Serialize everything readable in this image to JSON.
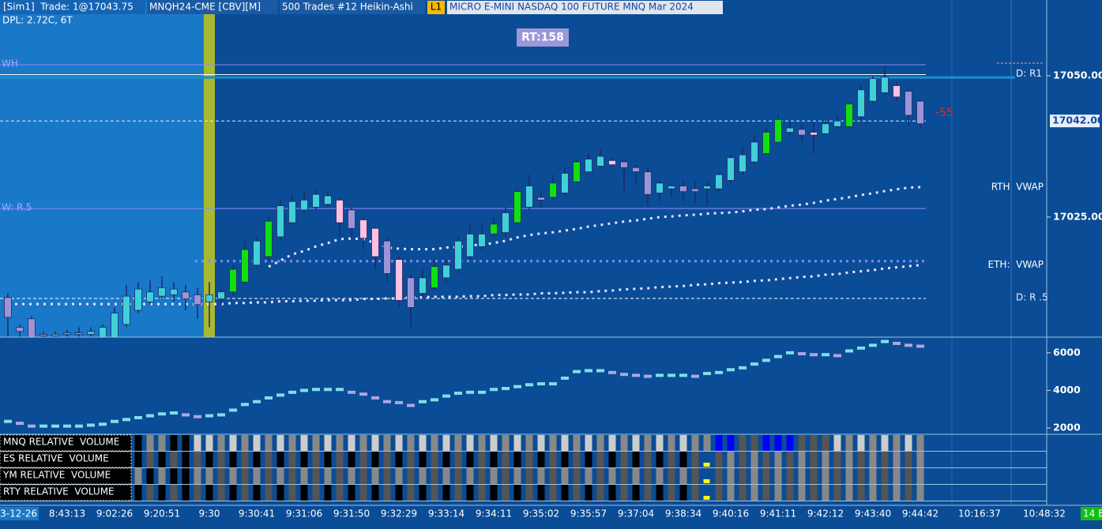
{
  "header": {
    "trade": "[Sim1]  Trade: 1@17043.75",
    "instrument": "MNQH24-CME [CBV][M]",
    "bar_type": "500 Trades #12 Heikin-Ashi",
    "level": "L1",
    "description": "MICRO E-MINI NASDAQ 100 FUTURE MNQ Mar 2024",
    "dpl": "DPL: 2.72C, 6T",
    "rt": "RT:158"
  },
  "chart_data": [
    {
      "type": "candlestick",
      "open": [
        17010.75,
        17005.5,
        17007,
        17004.25,
        17004,
        17004.25,
        17004.25,
        17004.25,
        17003.75,
        17003.75,
        17006,
        17008.5,
        17010,
        17011,
        17011.25,
        17011.75,
        17011.25,
        17010,
        17010.5,
        17011.75,
        17013.5,
        17016.5,
        17018,
        17021.5,
        17024,
        17026.25,
        17026.75,
        17027.25,
        17028,
        17026.25,
        17024.5,
        17023,
        17020.75,
        17017.5,
        17014.25,
        17011.5,
        17012.5,
        17014.25,
        17015.75,
        17018,
        17019.75,
        17022,
        17022.25,
        17024,
        17026.75,
        17028.5,
        17028.5,
        17029.25,
        17031.25,
        17033,
        17034,
        17035,
        17034.75,
        17033.75,
        17033,
        17029.25,
        17030,
        17030.5,
        17030,
        17030,
        17030,
        17031.5,
        17033,
        17034.75,
        17036.25,
        17038.25,
        17040,
        17040.5,
        17040,
        17039.75,
        17041,
        17041,
        17042.75,
        17045.5,
        17047,
        17048.25,
        17047.25,
        17045.5
      ],
      "high": [
        17011.5,
        17006,
        17007.5,
        17004.75,
        17004.75,
        17005,
        17005.5,
        17005.5,
        17006,
        17009,
        17013,
        17013.5,
        17013.75,
        17014.5,
        17013.5,
        17013,
        17012.5,
        17013.5,
        17012.25,
        17016.5,
        17020.75,
        17021.5,
        17025,
        17028,
        17029,
        17029.5,
        17030,
        17029.5,
        17028.5,
        17026.75,
        17025,
        17023.25,
        17021.25,
        17018,
        17015,
        17015.75,
        17017.5,
        17017.5,
        17021.5,
        17023.75,
        17023.75,
        17025,
        17026.75,
        17030,
        17032.5,
        17029.5,
        17032.5,
        17033.75,
        17035.25,
        17036.25,
        17037,
        17035.5,
        17035.25,
        17034.25,
        17033.75,
        17031.5,
        17031,
        17031.5,
        17031.25,
        17031.25,
        17033,
        17036,
        17037.5,
        17039.5,
        17040.75,
        17043,
        17042,
        17041.5,
        17041.75,
        17042.25,
        17043,
        17045.5,
        17048.25,
        17050,
        17051.75,
        17049,
        17047.5,
        17045.75
      ],
      "low": [
        17003.75,
        17003.75,
        17003.75,
        17003.75,
        17003.75,
        17003.75,
        17003.75,
        17003.75,
        17003.75,
        17003.75,
        17005.5,
        17008,
        17009.5,
        17010.5,
        17010,
        17008.5,
        17007,
        17005.5,
        17009.5,
        17011,
        17013,
        17016,
        17017.5,
        17021,
        17023.75,
        17025.75,
        17026.25,
        17026.75,
        17021.5,
        17021.25,
        17019.25,
        17015.75,
        17013.5,
        17009,
        17005.5,
        17010.5,
        17012,
        17013.5,
        17015,
        17017.5,
        17019.25,
        17021.5,
        17021.5,
        17023.75,
        17026.25,
        17026.75,
        17028,
        17028.75,
        17031,
        17032.5,
        17033.75,
        17034,
        17029.5,
        17031,
        17027,
        17027.75,
        17028.5,
        17027.75,
        17027.5,
        17027,
        17029.5,
        17031,
        17032.5,
        17034.25,
        17036,
        17038,
        17039.5,
        17038.25,
        17036.25,
        17039.5,
        17040.75,
        17040.75,
        17042.25,
        17045,
        17046.5,
        17045.5,
        17041,
        17040.75
      ],
      "close": [
        17007.25,
        17004.75,
        17003.75,
        17004,
        17004.25,
        17004.5,
        17004.5,
        17004.75,
        17005.5,
        17008,
        17011,
        17012.25,
        17011.75,
        17012.5,
        17012.25,
        17010.5,
        17009.5,
        17011.25,
        17011.75,
        17015.75,
        17019.25,
        17020.75,
        17024.25,
        17027,
        17027.75,
        17028,
        17029,
        17028.75,
        17024,
        17023,
        17021.25,
        17018,
        17015,
        17010.25,
        17009,
        17014.25,
        17016.25,
        17016.5,
        17020.75,
        17022,
        17022,
        17023.75,
        17025.75,
        17029.5,
        17030.5,
        17028,
        17031,
        17032.75,
        17034.75,
        17035.25,
        17035.75,
        17034.25,
        17033.75,
        17033,
        17029,
        17031,
        17030.5,
        17029.5,
        17029.5,
        17030.5,
        17032.5,
        17035.5,
        17036,
        17038.25,
        17040,
        17042.25,
        17040.75,
        17039.5,
        17039.5,
        17041.5,
        17042,
        17045,
        17047.5,
        17049.5,
        17049.75,
        17046.25,
        17043,
        17041.5
      ],
      "colors": [
        "#9c94d8",
        "#9c94d8",
        "#9c94d8",
        "#9c94d8",
        "#40d0d8",
        "#40d0d8",
        "#40d0d8",
        "#40d0d8",
        "#40d0d8",
        "#40d0d8",
        "#40d0d8",
        "#40d0d8",
        "#40d0d8",
        "#40d0d8",
        "#40d0d8",
        "#9c94d8",
        "#9c94d8",
        "#40d0d8",
        "#40d0d8",
        "#10e010",
        "#10e010",
        "#40d0d8",
        "#10e010",
        "#40d0d8",
        "#40d0d8",
        "#40d0d8",
        "#40d0d8",
        "#40d0d8",
        "#ffc0e0",
        "#9c94d8",
        "#ffc0e0",
        "#ffc0e0",
        "#9c94d8",
        "#ffc0e0",
        "#9c94d8",
        "#40d0d8",
        "#10e010",
        "#40d0d8",
        "#40d0d8",
        "#40d0d8",
        "#40d0d8",
        "#10e010",
        "#40d0d8",
        "#10e010",
        "#40d0d8",
        "#9c94d8",
        "#10e010",
        "#40d0d8",
        "#10e010",
        "#40d0d8",
        "#40d0d8",
        "#ffc0e0",
        "#9c94d8",
        "#9c94d8",
        "#9c94d8",
        "#40d0d8",
        "#40d0d8",
        "#9c94d8",
        "#9c94d8",
        "#40d0d8",
        "#40d0d8",
        "#40d0d8",
        "#40d0d8",
        "#40d0d8",
        "#10e010",
        "#10e010",
        "#40d0d8",
        "#9c94d8",
        "#ffc0e0",
        "#40d0d8",
        "#40d0d8",
        "#10e010",
        "#40d0d8",
        "#40d0d8",
        "#40d0d8",
        "#ffc0e0",
        "#9c94d8",
        "#9c94d8"
      ],
      "wick_color": "#1c2a6a",
      "ylim": [
        17003.75,
        17063.4
      ],
      "yticks": [
        {
          "value": 17050,
          "label": "17050.00"
        },
        {
          "value": 17025,
          "label": "17025.00"
        }
      ],
      "last_price": {
        "value": 17042,
        "label": "17042.00"
      },
      "levels": [
        {
          "name": "WH",
          "value": 17051.95,
          "color": "#8c8cff",
          "label_side": "left"
        },
        {
          "name": "D: R1",
          "value": 17050.2,
          "color": "#ffffff",
          "label_side": "right"
        },
        {
          "value": 17049.7,
          "color": "#1890d0",
          "line_width": 3
        },
        {
          "name": "W: R.5",
          "value": 17026.5,
          "color": "#8c8cff",
          "label_side": "left"
        },
        {
          "name": "D: R .5",
          "value": 17010.6,
          "color": "#ffffff",
          "dashed": true,
          "label_side": "right"
        },
        {
          "value": 17017.2,
          "color": "#7a8cff",
          "dotted": true
        }
      ],
      "overlays": [
        {
          "name": "RTH  VWAP",
          "color": "#e6e0ff",
          "values": [
            null,
            null,
            null,
            null,
            null,
            null,
            null,
            null,
            null,
            null,
            null,
            null,
            null,
            null,
            null,
            null,
            null,
            null,
            null,
            null,
            null,
            null,
            17016.2,
            17017.3,
            17018.4,
            17019.0,
            17019.8,
            17020.4,
            17021.1,
            17021.2,
            17021.1,
            17020.4,
            17019.6,
            17019.4,
            17019.3,
            17019.3,
            17019.3,
            17019.6,
            17019.7,
            17020.0,
            17020.1,
            17020.4,
            17020.8,
            17021.4,
            17021.8,
            17022.1,
            17022.3,
            17022.6,
            17022.9,
            17023.3,
            17023.6,
            17023.9,
            17024.2,
            17024.4,
            17024.7,
            17025.0,
            17025.1,
            17025.3,
            17025.4,
            17025.6,
            17025.7,
            17025.8,
            17026.0,
            17026.3,
            17026.4,
            17026.7,
            17027.0,
            17027.2,
            17027.5,
            17027.9,
            17028.2,
            17028.5,
            17028.9,
            17029.2,
            17029.6,
            17029.9,
            17030.2,
            17030.3
          ]
        },
        {
          "name": "ETH:  VWAP",
          "color": "#e6e0ff",
          "values": [
            17009.6,
            17009.6,
            17009.6,
            17009.6,
            17009.6,
            17009.6,
            17009.6,
            17009.6,
            17009.6,
            17009.6,
            17009.6,
            17009.6,
            17009.6,
            17009.6,
            17009.6,
            17009.6,
            17009.6,
            17009.6,
            17009.6,
            17009.8,
            17009.8,
            17009.9,
            17009.9,
            17010.1,
            17010.1,
            17010.2,
            17010.2,
            17010.3,
            17010.3,
            17010.3,
            17010.5,
            17010.5,
            17010.6,
            17010.6,
            17010.8,
            17010.8,
            17010.9,
            17010.9,
            17010.9,
            17011.0,
            17011.0,
            17011.2,
            17011.2,
            17011.3,
            17011.3,
            17011.5,
            17011.5,
            17011.6,
            17011.7,
            17011.7,
            17011.9,
            17012.0,
            17012.2,
            17012.3,
            17012.4,
            17012.6,
            17012.7,
            17012.8,
            17013.0,
            17013.1,
            17013.3,
            17013.4,
            17013.5,
            17013.7,
            17013.8,
            17014.0,
            17014.2,
            17014.4,
            17014.5,
            17014.8,
            17014.9,
            17015.2,
            17015.4,
            17015.6,
            17015.9,
            17016.1,
            17016.3,
            17016.5
          ]
        }
      ],
      "annotations": [
        {
          "text": "-55",
          "color": "#e02828"
        }
      ]
    },
    {
      "type": "dash",
      "values": [
        2350,
        2250,
        2100,
        2100,
        2100,
        2100,
        2100,
        2150,
        2200,
        2350,
        2450,
        2550,
        2650,
        2750,
        2800,
        2700,
        2600,
        2650,
        2700,
        2950,
        3250,
        3400,
        3600,
        3750,
        3900,
        4000,
        4050,
        4050,
        4050,
        3900,
        3800,
        3600,
        3400,
        3350,
        3200,
        3400,
        3500,
        3700,
        3850,
        3900,
        3900,
        4050,
        4100,
        4200,
        4300,
        4350,
        4350,
        4650,
        5000,
        5050,
        5050,
        4950,
        4850,
        4800,
        4750,
        4800,
        4800,
        4800,
        4750,
        4900,
        4950,
        5100,
        5200,
        5400,
        5600,
        5800,
        6000,
        5950,
        5900,
        5900,
        5850,
        6100,
        6250,
        6400,
        6600,
        6500,
        6400,
        6350
      ],
      "up_color": "#7fe0e8",
      "down_color": "#b0a4e4",
      "ylim": [
        1667,
        6833
      ],
      "yticks": [
        2000,
        4000,
        6000
      ]
    }
  ],
  "relative_volume": {
    "rows": [
      {
        "name": "MNQ RELATIVE  VOLUME",
        "colors": [
          null,
          null,
          null,
          null,
          null,
          null,
          null,
          null,
          null,
          null,
          null,
          "#000",
          "#888",
          "#888",
          "#000",
          "#000",
          "#ccc",
          "#ccc",
          "#888",
          "#ccc",
          "#888",
          "#ccc",
          "#888",
          "#ccc",
          "#888",
          "#ccc",
          "#888",
          "#ccc",
          "#888",
          "#ccc",
          "#888",
          "#ccc",
          "#888",
          "#ccc",
          "#888",
          "#ccc",
          "#888",
          "#ccc",
          "#888",
          "#ccc",
          "#888",
          "#ccc",
          "#888",
          "#ccc",
          "#888",
          "#ccc",
          "#888",
          "#ccc",
          "#888",
          "#ccc",
          "#888",
          "#ccc",
          "#888",
          "#ccc",
          "#888",
          "#ccc",
          "#888",
          "#ccc",
          "#888",
          "#888",
          "#00f",
          "#00f",
          "#555",
          "#555",
          "#00f",
          "#00f",
          "#00f",
          "#555",
          "#555",
          "#555",
          "#ccc",
          "#888",
          "#ccc",
          "#888",
          "#ccc",
          "#888",
          "#ccc",
          "#888"
        ]
      },
      {
        "name": "ES RELATIVE  VOLUME",
        "colors": [
          null,
          null,
          null,
          null,
          null,
          null,
          null,
          null,
          null,
          null,
          null,
          "#000",
          "#555",
          "#000",
          "#555",
          "#000",
          "#555",
          "#000",
          "#555",
          "#000",
          "#555",
          "#000",
          "#555",
          "#000",
          "#555",
          "#000",
          "#555",
          "#000",
          "#555",
          "#000",
          "#555",
          "#000",
          "#555",
          "#000",
          "#555",
          "#000",
          "#555",
          "#000",
          "#555",
          "#000",
          "#555",
          "#000",
          "#555",
          "#000",
          "#555",
          "#000",
          "#555",
          "#000",
          "#555",
          "#000",
          "#555",
          "#000",
          "#555",
          "#000",
          "#555",
          "#000",
          "#555",
          "#000",
          "#555",
          "#ff0",
          "#555",
          "#888",
          "#555",
          "#888",
          "#555",
          "#888",
          "#555",
          "#888",
          "#555",
          "#888",
          "#555",
          "#888",
          "#555",
          "#888",
          "#555",
          "#888",
          "#555",
          "#888"
        ]
      },
      {
        "name": "YM RELATIVE  VOLUME",
        "colors": [
          null,
          null,
          null,
          null,
          null,
          null,
          null,
          null,
          null,
          null,
          null,
          "#888",
          "#000",
          "#888",
          "#000",
          "#000",
          "#888",
          "#888",
          "#555",
          "#888",
          "#555",
          "#888",
          "#555",
          "#888",
          "#555",
          "#888",
          "#555",
          "#888",
          "#555",
          "#888",
          "#555",
          "#888",
          "#555",
          "#888",
          "#555",
          "#888",
          "#555",
          "#888",
          "#555",
          "#888",
          "#555",
          "#888",
          "#555",
          "#888",
          "#555",
          "#888",
          "#555",
          "#888",
          "#555",
          "#888",
          "#555",
          "#888",
          "#555",
          "#888",
          "#555",
          "#888",
          "#555",
          "#888",
          "#555",
          "#ff0",
          "#555",
          "#888",
          "#555",
          "#888",
          "#555",
          "#888",
          "#555",
          "#888",
          "#555",
          "#888",
          "#555",
          "#888",
          "#555",
          "#888",
          "#555",
          "#888",
          "#555",
          "#888"
        ]
      },
      {
        "name": "RTY RELATIVE  VOLUME",
        "colors": [
          null,
          null,
          null,
          null,
          null,
          null,
          null,
          null,
          null,
          null,
          null,
          "#000",
          "#555",
          "#000",
          "#555",
          "#000",
          "#555",
          "#000",
          "#555",
          "#000",
          "#555",
          "#000",
          "#555",
          "#000",
          "#555",
          "#000",
          "#555",
          "#000",
          "#555",
          "#000",
          "#555",
          "#000",
          "#555",
          "#000",
          "#555",
          "#000",
          "#555",
          "#000",
          "#555",
          "#000",
          "#555",
          "#000",
          "#555",
          "#000",
          "#555",
          "#000",
          "#555",
          "#000",
          "#555",
          "#000",
          "#555",
          "#000",
          "#555",
          "#000",
          "#555",
          "#000",
          "#555",
          "#000",
          "#555",
          "#ff0",
          "#555",
          "#888",
          "#555",
          "#888",
          "#555",
          "#888",
          "#555",
          "#888",
          "#555",
          "#888",
          "#555",
          "#888",
          "#555",
          "#888",
          "#555",
          "#888",
          "#555",
          "#888"
        ]
      }
    ]
  },
  "time_axis": {
    "labels": [
      "3-12-26",
      "8:43:13",
      "9:02:26",
      "9:20:51",
      "9:30",
      "9:30:41",
      "9:31:06",
      "9:31:50",
      "9:32:29",
      "9:33:14",
      "9:34:11",
      "9:35:02",
      "9:35:57",
      "9:37:04",
      "9:38:34",
      "9:40:16",
      "9:41:11",
      "9:42:12",
      "9:43:40",
      "9:44:42",
      "10:16:37",
      "10:48:32"
    ],
    "badge": "14 E"
  }
}
